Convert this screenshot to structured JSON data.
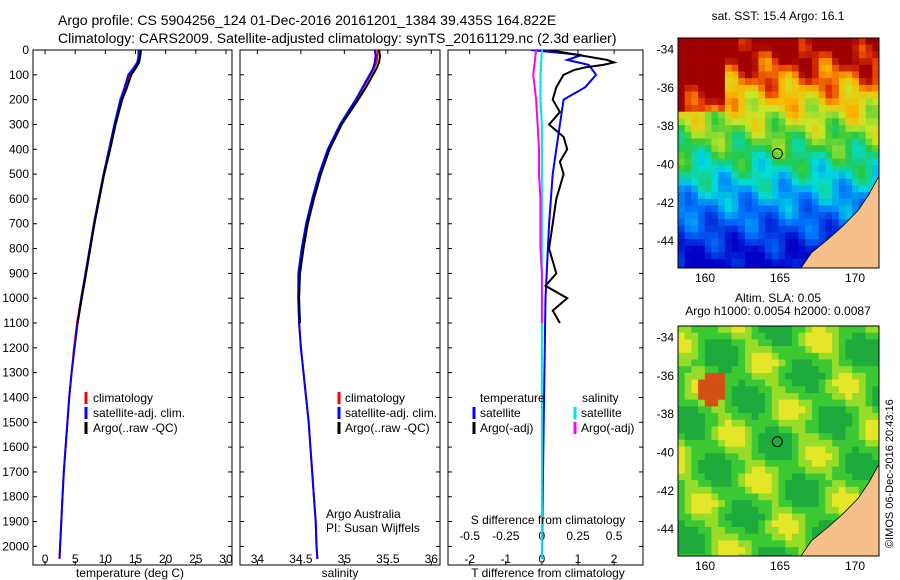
{
  "header": {
    "line1": "Argo profile: CS 5904256_124 01-Dec-2016 20161201_1384 39.435S 164.822E",
    "line2": "Climatology: CARS2009. Satellite-adjusted climatology: synTS_20161129.nc (2.3d earlier)"
  },
  "colors": {
    "climatology": "#ff0000",
    "satellite": "#0000ff",
    "argo": "#000000",
    "satellite_s": "#00e5e5",
    "argo_s": "#ff00ff",
    "land": "#f5c08a"
  },
  "chart_data": [
    {
      "id": "temperature",
      "type": "line",
      "xlabel": "temperature (deg C)",
      "xlim": [
        -2,
        31
      ],
      "xticks": [
        "0",
        "5",
        "10",
        "15",
        "20",
        "25",
        "30"
      ],
      "ylim": [
        2075,
        0
      ],
      "yticks": [
        "0",
        "100",
        "200",
        "300",
        "400",
        "500",
        "600",
        "700",
        "800",
        "900",
        "1000",
        "1100",
        "1200",
        "1300",
        "1400",
        "1500",
        "1600",
        "1700",
        "1800",
        "1900",
        "2000"
      ],
      "legend": [
        "climatology",
        "satellite-adj. clim.",
        "Argo(..raw -QC)"
      ],
      "series": [
        {
          "name": "climatology",
          "color": "#ff0000",
          "depth": [
            0,
            25,
            50,
            75,
            100,
            150,
            200,
            300,
            400,
            500,
            600,
            700,
            800,
            900,
            1000,
            1100,
            1200,
            1300,
            1400,
            1500,
            1600,
            1700,
            1800,
            1900,
            2000,
            2050
          ],
          "values": [
            15.8,
            15.7,
            15.4,
            14.8,
            14.0,
            13.3,
            12.6,
            11.6,
            10.7,
            9.7,
            8.9,
            8.1,
            7.4,
            6.7,
            6.0,
            5.3,
            4.8,
            4.4,
            4.0,
            3.7,
            3.4,
            3.1,
            2.9,
            2.7,
            2.5,
            2.4
          ]
        },
        {
          "name": "satellite-adj. clim.",
          "color": "#0000ff",
          "depth": [
            0,
            25,
            50,
            75,
            100,
            150,
            200,
            300,
            400,
            500,
            600,
            700,
            800,
            900,
            1000,
            1100,
            1200,
            1300,
            1400,
            1500,
            1600,
            1700,
            1800,
            1900,
            2000,
            2050
          ],
          "values": [
            15.5,
            15.5,
            15.3,
            14.6,
            13.8,
            13.2,
            12.5,
            11.5,
            10.6,
            9.7,
            8.9,
            8.1,
            7.4,
            6.7,
            6.0,
            5.4,
            4.9,
            4.4,
            4.0,
            3.7,
            3.4,
            3.1,
            2.9,
            2.7,
            2.5,
            2.4
          ]
        },
        {
          "name": "Argo(..raw -QC)",
          "color": "#000000",
          "depth": [
            0,
            25,
            50,
            75,
            100,
            150,
            200,
            300,
            400,
            500,
            600,
            700,
            800,
            900,
            1000,
            1100
          ],
          "values": [
            15.9,
            15.8,
            15.6,
            15.0,
            14.3,
            13.6,
            12.8,
            11.7,
            10.8,
            9.8,
            9.0,
            8.2,
            7.5,
            6.8,
            6.1,
            5.4
          ]
        }
      ]
    },
    {
      "id": "salinity",
      "type": "line",
      "xlabel": "salinity",
      "xlim": [
        33.8,
        36.1
      ],
      "xticks": [
        "34",
        "34.5",
        "35",
        "35.5",
        "36"
      ],
      "ylim": [
        2075,
        0
      ],
      "legend": [
        "climatology",
        "satellite-adj. clim.",
        "Argo(..raw -QC)"
      ],
      "annotation": [
        "Argo Australia",
        "PI: Susan Wijffels"
      ],
      "series": [
        {
          "name": "climatology",
          "color": "#ff0000",
          "depth": [
            0,
            25,
            50,
            75,
            100,
            150,
            200,
            300,
            400,
            500,
            600,
            700,
            800,
            900,
            1000,
            1100,
            1200,
            1300,
            1400,
            1500,
            1600,
            1700,
            1800,
            1900,
            2000,
            2050
          ],
          "values": [
            35.38,
            35.38,
            35.37,
            35.34,
            35.3,
            35.22,
            35.14,
            34.96,
            34.82,
            34.72,
            34.64,
            34.57,
            34.52,
            34.48,
            34.47,
            34.48,
            34.5,
            34.53,
            34.56,
            34.59,
            34.61,
            34.63,
            34.65,
            34.67,
            34.68,
            34.69
          ]
        },
        {
          "name": "satellite-adj. clim.",
          "color": "#0000ff",
          "depth": [
            0,
            25,
            50,
            75,
            100,
            150,
            200,
            300,
            400,
            500,
            600,
            700,
            800,
            900,
            1000,
            1100,
            1200,
            1300,
            1400,
            1500,
            1600,
            1700,
            1800,
            1900,
            2000,
            2050
          ],
          "values": [
            35.35,
            35.36,
            35.35,
            35.33,
            35.29,
            35.21,
            35.13,
            34.95,
            34.81,
            34.71,
            34.63,
            34.56,
            34.51,
            34.47,
            34.47,
            34.48,
            34.5,
            34.53,
            34.56,
            34.59,
            34.61,
            34.63,
            34.65,
            34.67,
            34.68,
            34.69
          ]
        },
        {
          "name": "Argo(..raw -QC)",
          "color": "#000000",
          "depth": [
            0,
            25,
            50,
            75,
            100,
            150,
            200,
            300,
            400,
            500,
            600,
            700,
            800,
            900,
            1000,
            1100
          ],
          "values": [
            35.4,
            35.41,
            35.4,
            35.37,
            35.33,
            35.25,
            35.16,
            34.97,
            34.83,
            34.73,
            34.65,
            34.58,
            34.53,
            34.49,
            34.48,
            34.49
          ]
        }
      ]
    },
    {
      "id": "differences",
      "type": "line",
      "xlabel_bottom": "T difference from climatology",
      "xlabel_top": "S difference from climatology",
      "xlim": [
        -2.6,
        2.8
      ],
      "xticks_t": [
        "-2",
        "-1",
        "0",
        "1",
        "2"
      ],
      "xticks_s": [
        "-0.5",
        "-0.25",
        "0",
        "0.25",
        "0.5"
      ],
      "ylim": [
        2075,
        0
      ],
      "legend_t_title": "temperature",
      "legend_s_title": "salinity",
      "legend_t": [
        "satellite",
        "Argo(-adj)"
      ],
      "legend_s": [
        "satellite",
        "Argo(-adj)"
      ],
      "series": [
        {
          "name": "T satellite",
          "color": "#0000ff",
          "depth": [
            0,
            20,
            40,
            60,
            80,
            100,
            150,
            200,
            300,
            400,
            500,
            700,
            1000,
            1500,
            2050
          ],
          "values": [
            -0.3,
            1.1,
            0.7,
            1.3,
            1.4,
            1.5,
            1.2,
            0.6,
            0.5,
            0.4,
            0.3,
            0.2,
            0.1,
            0.05,
            0.0
          ]
        },
        {
          "name": "T Argo(-adj)",
          "color": "#000000",
          "depth": [
            0,
            10,
            20,
            30,
            40,
            50,
            60,
            70,
            80,
            100,
            150,
            200,
            250,
            300,
            350,
            400,
            450,
            500,
            600,
            700,
            800,
            900,
            950,
            1000,
            1050,
            1100
          ],
          "values": [
            0.2,
            0.6,
            1.0,
            1.4,
            1.8,
            2.0,
            1.7,
            1.2,
            0.9,
            0.6,
            0.4,
            0.3,
            0.5,
            0.2,
            0.6,
            0.7,
            0.5,
            0.6,
            0.4,
            0.3,
            0.2,
            0.4,
            0.1,
            0.7,
            0.3,
            0.5
          ]
        },
        {
          "name": "S satellite",
          "color": "#00e5e5",
          "depth": [
            0,
            100,
            200,
            300,
            400,
            500,
            700,
            1000,
            1500,
            2050
          ],
          "values": [
            0.0,
            -0.01,
            -0.01,
            0.0,
            0.0,
            0.0,
            0.0,
            0.0,
            0.0,
            0.0
          ]
        },
        {
          "name": "S Argo(-adj)",
          "color": "#ff00ff",
          "depth": [
            0,
            50,
            100,
            150,
            200,
            300,
            400,
            500,
            600,
            700,
            800,
            900,
            1000,
            1100
          ],
          "values": [
            -0.04,
            -0.05,
            -0.06,
            -0.05,
            -0.04,
            -0.03,
            -0.02,
            -0.02,
            -0.01,
            -0.01,
            -0.01,
            0.0,
            0.0,
            0.0
          ]
        }
      ]
    }
  ],
  "maps": {
    "sst": {
      "title": "sat. SST: 15.4  Argo: 16.1",
      "xticks": [
        "160",
        "165",
        "170"
      ],
      "yticks": [
        "-34",
        "-36",
        "-38",
        "-40",
        "-42",
        "-44"
      ],
      "float_lon": 164.822,
      "float_lat": -39.435
    },
    "sla": {
      "title1": "Altim. SLA: 0.05",
      "title2": "Argo h1000: 0.0054  h2000: 0.0087",
      "xticks": [
        "160",
        "165",
        "170"
      ],
      "yticks": [
        "-34",
        "-36",
        "-38",
        "-40",
        "-42",
        "-44"
      ],
      "float_lon": 164.822,
      "float_lat": -39.435
    }
  },
  "credit": "©IMOS 06-Dec-2016 20:43:16"
}
